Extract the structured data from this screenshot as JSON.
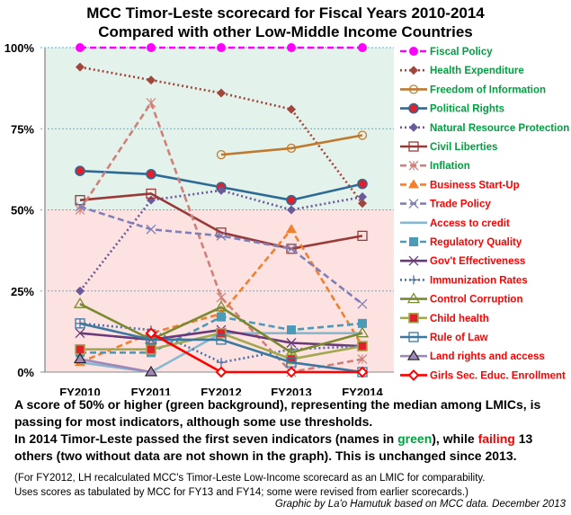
{
  "title_line1": "MCC Timor-Leste scorecard for Fiscal Years 2010-2014",
  "title_line2": "Compared with other Low-Middle Income Countries",
  "notes": {
    "line1": "A score of 50% or higher (green background), representing the median among LMICs, is passing for most indicators, although some use thresholds.",
    "line2_a": "In 2014 Timor-Leste passed the first seven indicators (names in ",
    "line2_green": "green",
    "line2_b": "), while ",
    "line2_red": "failing",
    "line2_c": " 13 others (two without data are not shown in the graph). This is unchanged since 2013.",
    "small1": "(For FY2012, LH recalculated MCC's Timor-Leste Low-Income scorecard as an LMIC for comparability.",
    "small2": " Uses scores as tabulated by MCC for FY13 and FY14; some were revised from earlier scorecards.)",
    "credit": "Graphic by La'o Hamutuk based on MCC data. December 2013"
  },
  "colors": {
    "pass_background": "#e3f2ea",
    "fail_background": "#fde2e2",
    "pass_label": "#00a040",
    "fail_label": "#ff0000",
    "gridline": "#4bb8d8"
  },
  "chart_data": {
    "type": "line",
    "title": "MCC Timor-Leste scorecard for Fiscal Years 2010-2014 Compared with other Low-Middle Income Countries",
    "xlabel": "",
    "ylabel": "",
    "categories": [
      "FY2010",
      "FY2011",
      "FY2012",
      "FY2013",
      "FY2014"
    ],
    "ylim": [
      0,
      100
    ],
    "yticks": [
      0,
      25,
      50,
      75,
      100
    ],
    "ytick_labels": [
      "0%",
      "25%",
      "50%",
      "75%",
      "100%"
    ],
    "grid": true,
    "legend_position": "right",
    "pass_threshold": 50,
    "series": [
      {
        "name": "Fiscal Policy",
        "status": "pass",
        "color": "#ff00ff",
        "dash": "dashed",
        "marker": "circle-filled",
        "values": [
          100,
          100,
          100,
          100,
          100
        ]
      },
      {
        "name": "Health Expenditure",
        "status": "pass",
        "color": "#a0463c",
        "dash": "dotted",
        "marker": "diamond-filled",
        "values": [
          94,
          90,
          86,
          81,
          52
        ]
      },
      {
        "name": "Freedom of Information",
        "status": "pass",
        "color": "#c07a30",
        "dash": "solid",
        "marker": "circle-open",
        "values": [
          null,
          null,
          67,
          69,
          73
        ]
      },
      {
        "name": "Political Rights",
        "status": "pass",
        "color": "#2e6a96",
        "dash": "solid",
        "marker": "circle-striped",
        "values": [
          62,
          61,
          57,
          53,
          58
        ]
      },
      {
        "name": "Natural Resource Protection",
        "status": "pass",
        "color": "#6a5a9a",
        "dash": "dotted",
        "marker": "diamond-filled",
        "values": [
          25,
          53,
          56,
          50,
          54
        ]
      },
      {
        "name": "Civil Liberties",
        "status": "pass",
        "color": "#9a3a38",
        "dash": "solid",
        "marker": "square-open",
        "values": [
          53,
          55,
          43,
          38,
          42
        ]
      },
      {
        "name": "Inflation",
        "status": "pass",
        "color": "#d08078",
        "dash": "dashed",
        "marker": "asterisk",
        "values": [
          50,
          83,
          23,
          0,
          4
        ]
      },
      {
        "name": "Business Start-Up",
        "status": "fail",
        "color": "#f08030",
        "dash": "dashed",
        "marker": "triangle-filled",
        "values": [
          3,
          12,
          18,
          44,
          8
        ]
      },
      {
        "name": "Trade Policy",
        "status": "fail",
        "color": "#8080b8",
        "dash": "dashed",
        "marker": "x",
        "values": [
          51,
          44,
          42,
          38,
          21
        ]
      },
      {
        "name": "Access to credit",
        "status": "fail",
        "color": "#88b8d0",
        "dash": "solid",
        "marker": "none",
        "values": [
          3,
          0,
          12,
          12,
          12
        ]
      },
      {
        "name": "Regulatory Quality",
        "status": "fail",
        "color": "#4a9ab8",
        "dash": "dashed",
        "marker": "square-filled",
        "values": [
          6,
          6,
          17,
          13,
          15
        ]
      },
      {
        "name": "Gov't Effectiveness",
        "status": "fail",
        "color": "#6a3a78",
        "dash": "solid",
        "marker": "x",
        "values": [
          12,
          10,
          13,
          9,
          8
        ]
      },
      {
        "name": "Immunization Rates",
        "status": "fail",
        "color": "#5070a8",
        "dash": "dotted",
        "marker": "plus",
        "values": [
          15,
          13,
          3,
          7,
          8
        ]
      },
      {
        "name": "Control Corruption",
        "status": "fail",
        "color": "#7a8a30",
        "dash": "solid",
        "marker": "triangle-open",
        "values": [
          21,
          10,
          20,
          6,
          12
        ]
      },
      {
        "name": "Child health",
        "status": "fail",
        "color": "#a0a850",
        "dash": "solid",
        "marker": "square-striped",
        "values": [
          7,
          7,
          12,
          4,
          8
        ]
      },
      {
        "name": "Rule of Law",
        "status": "fail",
        "color": "#3a78a0",
        "dash": "solid",
        "marker": "square-open",
        "values": [
          15,
          10,
          10,
          3,
          0
        ]
      },
      {
        "name": "Land rights and access",
        "status": "fail",
        "color": "#a088b8",
        "dash": "solid",
        "marker": "triangle-dark",
        "values": [
          4,
          0,
          null,
          null,
          null
        ]
      },
      {
        "name": "Girls Sec. Educ. Enrollment",
        "status": "fail",
        "color": "#ff0000",
        "dash": "solid",
        "marker": "diamond-open",
        "values": [
          null,
          12,
          0,
          0,
          0
        ]
      }
    ]
  }
}
